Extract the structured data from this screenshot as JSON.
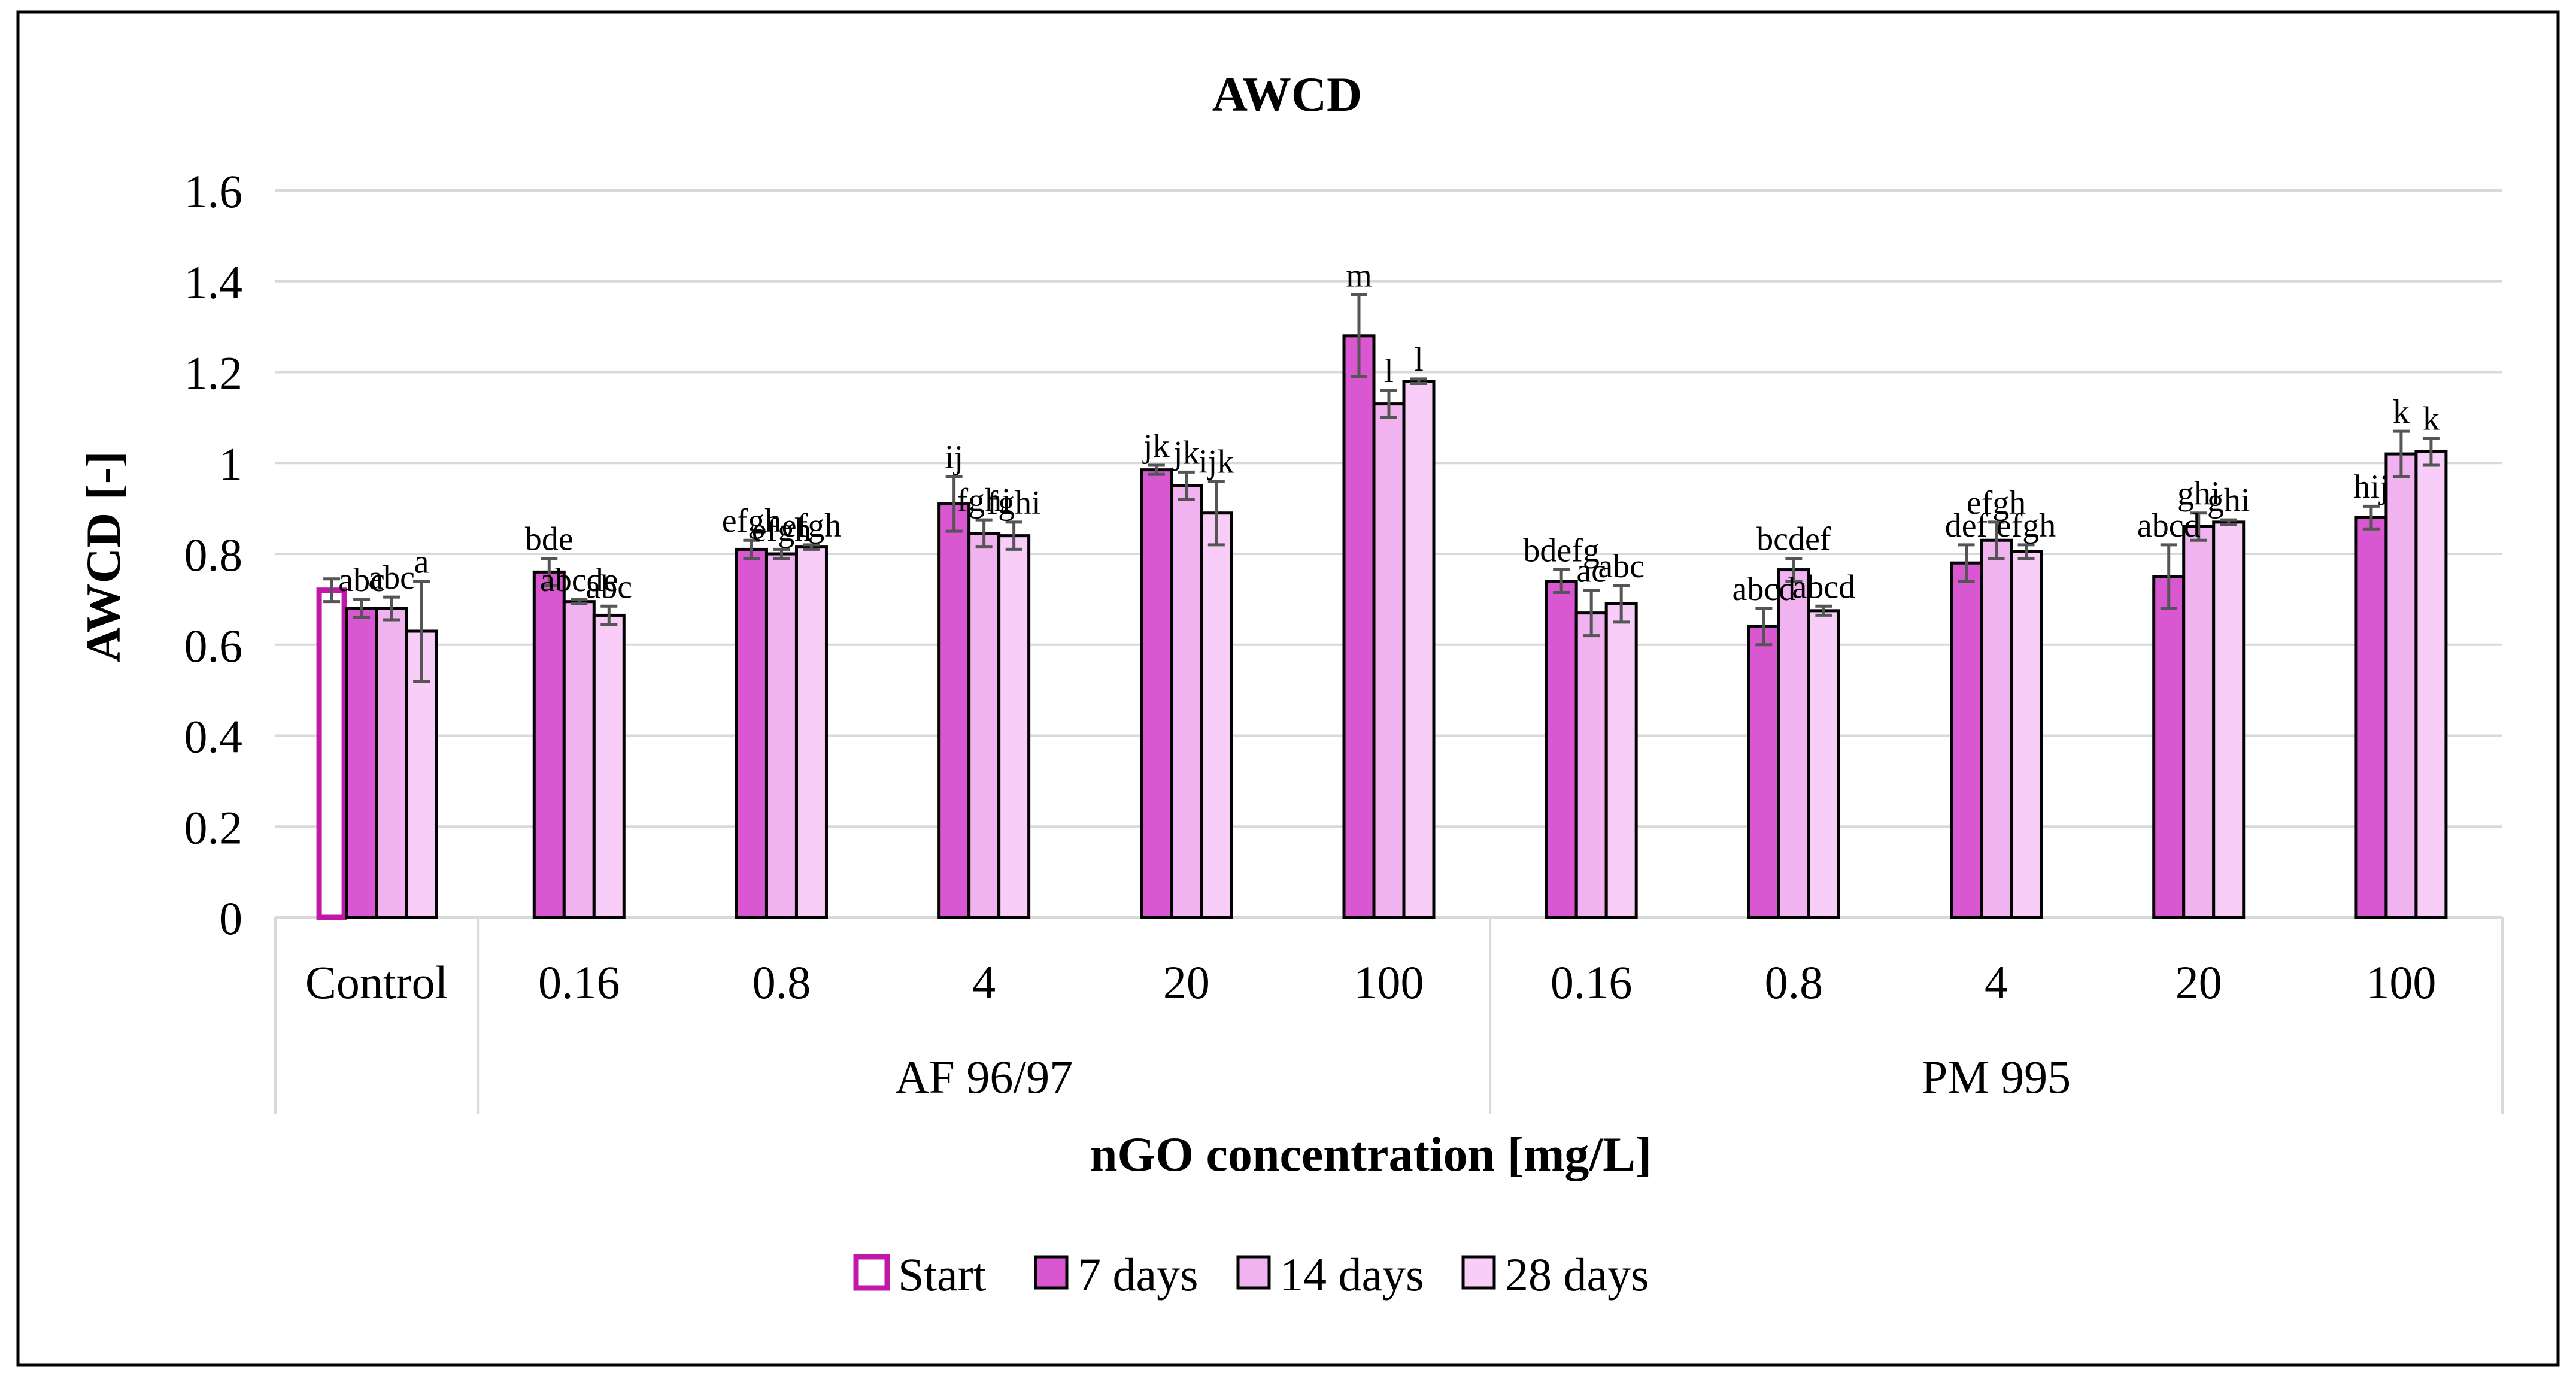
{
  "chart_data": {
    "type": "bar",
    "title": "AWCD",
    "ylabel": "AWCD [-]",
    "xlabel": "nGO concentration [mg/L]",
    "ylim": [
      0,
      1.6
    ],
    "yticks": [
      "0",
      "0.2",
      "0.4",
      "0.6",
      "0.8",
      "1",
      "1.2",
      "1.4",
      "1.6"
    ],
    "grid": true,
    "legend_position": "bottom",
    "colors": {
      "start_border": "#c218a8",
      "day7": "#d957d1",
      "day14": "#f1b3f0",
      "day28": "#f8cdf7",
      "bar_border": "#000000",
      "error": "#555555",
      "grid": "#d9d9d9"
    },
    "groups": [
      {
        "label": "",
        "span": [
          0,
          0
        ]
      },
      {
        "label": "AF 96/97",
        "span": [
          1,
          5
        ]
      },
      {
        "label": "PM 995",
        "span": [
          6,
          10
        ]
      }
    ],
    "categories": [
      "Control",
      "0.16",
      "0.8",
      "4",
      "20",
      "100",
      "0.16",
      "0.8",
      "4",
      "20",
      "100"
    ],
    "series": [
      {
        "name": "Start",
        "key": "start",
        "values": [
          0.72,
          null,
          null,
          null,
          null,
          null,
          null,
          null,
          null,
          null,
          null
        ],
        "errors": [
          0.025,
          null,
          null,
          null,
          null,
          null,
          null,
          null,
          null,
          null,
          null
        ],
        "labels": [
          "",
          "",
          "",
          "",
          "",
          "",
          "",
          "",
          "",
          "",
          ""
        ]
      },
      {
        "name": "7 days",
        "key": "day7",
        "values": [
          0.68,
          0.76,
          0.81,
          0.91,
          0.985,
          1.28,
          0.74,
          0.64,
          0.78,
          0.75,
          0.88
        ],
        "errors": [
          0.02,
          0.03,
          0.02,
          0.06,
          0.01,
          0.09,
          0.025,
          0.04,
          0.04,
          0.07,
          0.025
        ],
        "labels": [
          "abc",
          "bde",
          "efgh",
          "ij",
          "jk",
          "m",
          "bdefg",
          "abcd",
          "def",
          "abcd",
          "hij"
        ]
      },
      {
        "name": "14 days",
        "key": "day14",
        "values": [
          0.68,
          0.695,
          0.8,
          0.845,
          0.95,
          1.13,
          0.67,
          0.765,
          0.83,
          0.86,
          1.02
        ],
        "errors": [
          0.025,
          0.005,
          0.01,
          0.03,
          0.03,
          0.03,
          0.05,
          0.025,
          0.04,
          0.03,
          0.05
        ],
        "labels": [
          "abc",
          "abcde",
          "efgh",
          "fghi",
          "jk",
          "l",
          "ac",
          "bcdef",
          "efgh",
          "ghi",
          "k"
        ]
      },
      {
        "name": "28 days",
        "key": "day28",
        "values": [
          0.63,
          0.665,
          0.815,
          0.84,
          0.89,
          1.18,
          0.69,
          0.675,
          0.805,
          0.87,
          1.025
        ],
        "errors": [
          0.11,
          0.02,
          0.005,
          0.03,
          0.07,
          0.005,
          0.04,
          0.01,
          0.015,
          0.005,
          0.03
        ],
        "labels": [
          "a",
          "abc",
          "efgh",
          "fghi",
          "ijk",
          "l",
          "abc",
          "abcd",
          "efgh",
          "ghi",
          "k"
        ]
      }
    ]
  }
}
